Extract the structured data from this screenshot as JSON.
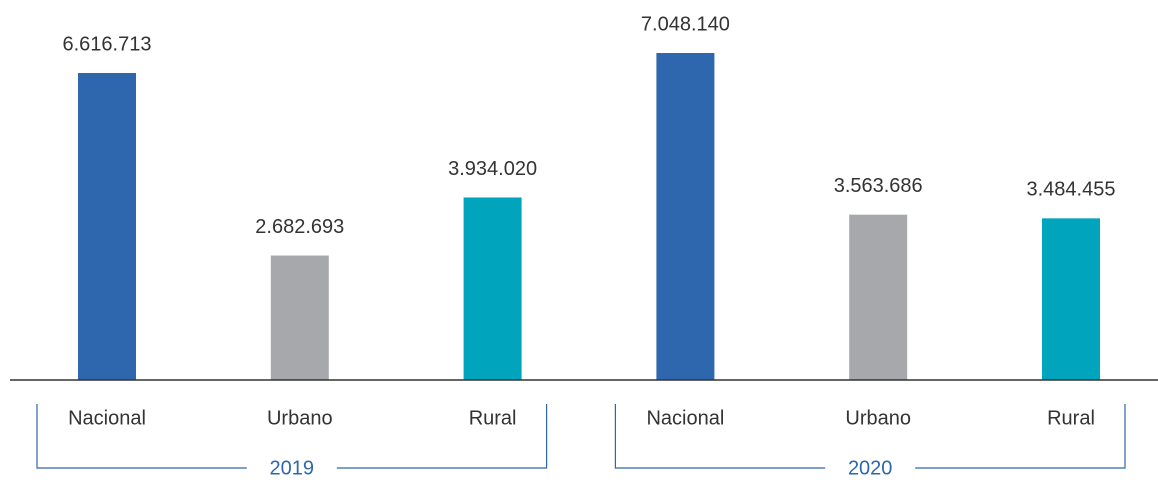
{
  "chart_data": {
    "type": "bar",
    "categories": [
      "Nacional",
      "Urbano",
      "Rural",
      "Nacional",
      "Urbano",
      "Rural"
    ],
    "values": [
      6616713,
      2682693,
      3934020,
      7048140,
      3563686,
      3484455
    ],
    "value_labels": [
      "6.616.713",
      "2.682.693",
      "3.934.020",
      "7.048.140",
      "3.563.686",
      "3.484.455"
    ],
    "colors": [
      "#2e67ad",
      "#a7a8ab",
      "#00a5bd",
      "#2e67ad",
      "#a7a8ab",
      "#00a5bd"
    ],
    "groups": [
      {
        "label": "2019",
        "size": 3
      },
      {
        "label": "2020",
        "size": 3
      }
    ]
  }
}
